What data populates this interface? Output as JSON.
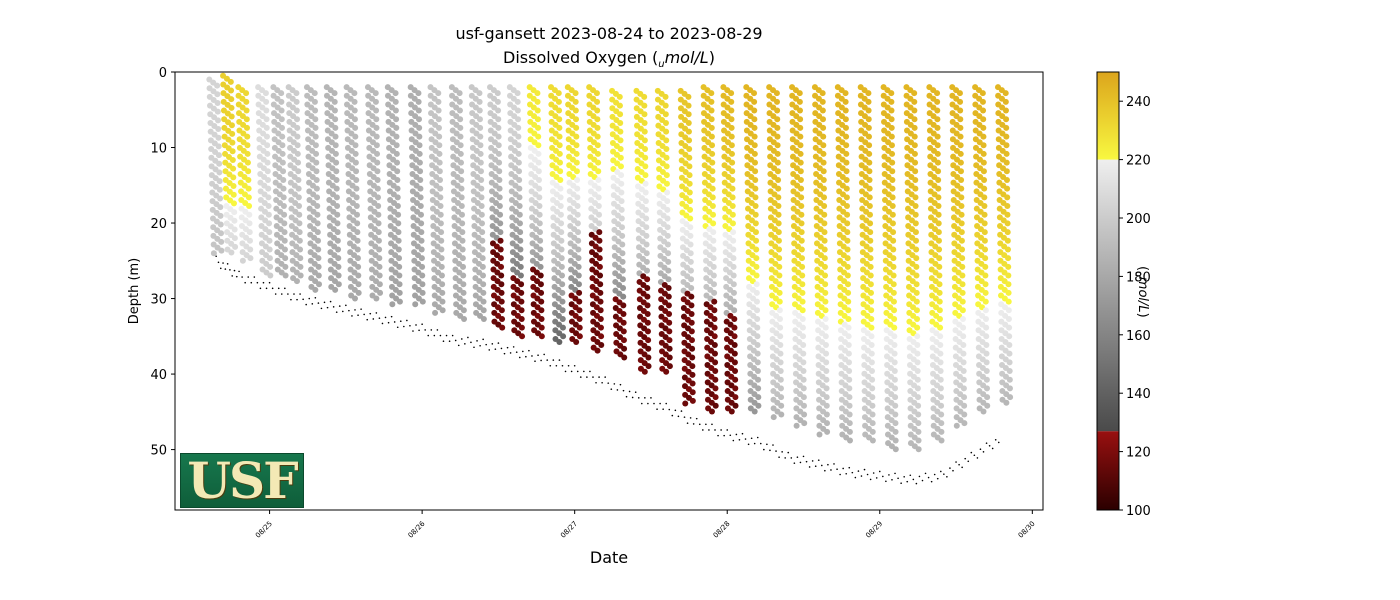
{
  "chart_data": {
    "type": "scatter",
    "title_line1": "usf-gansett 2023-08-24 to 2023-08-29",
    "title_line2_prefix": "Dissolved Oxygen (",
    "title_line2_sub": "u",
    "title_line2_unit": "mol/L",
    "title_line2_suffix": ")",
    "xlabel": "Date",
    "ylabel": "Depth (m)",
    "ylim": [
      58,
      0
    ],
    "y_ticks": [
      0,
      10,
      20,
      30,
      40,
      50
    ],
    "x_ticks": [
      "08/25",
      "08/26",
      "08/27",
      "08/28",
      "08/29",
      "08/30"
    ],
    "x_range_days": [
      24.38,
      30.07
    ],
    "colorbar": {
      "label_prefix": "(",
      "label_sub": "u",
      "label_unit": "mol/L",
      "label_suffix": ")",
      "range": [
        100,
        250
      ],
      "ticks": [
        100,
        120,
        140,
        160,
        180,
        200,
        220,
        240
      ],
      "segments": [
        {
          "from": 100,
          "to": 127,
          "colors": [
            "#2b0000",
            "#991010"
          ]
        },
        {
          "from": 127,
          "to": 220,
          "colors": [
            "#4a4a4a",
            "#efefef"
          ]
        },
        {
          "from": 220,
          "to": 250,
          "colors": [
            "#f8f840",
            "#dca51c"
          ]
        }
      ]
    },
    "profiles": [
      {
        "day": 24.63,
        "top": 1,
        "bottom": 24,
        "do_surface": 205,
        "do_bottom": 195
      },
      {
        "day": 24.72,
        "top": 0.5,
        "bottom": 24,
        "do_surface": 235,
        "do_bottom": 205
      },
      {
        "day": 24.82,
        "top": 2,
        "bottom": 25,
        "do_surface": 232,
        "do_bottom": 205
      },
      {
        "day": 24.95,
        "top": 2,
        "bottom": 27,
        "do_surface": 210,
        "do_bottom": 200
      },
      {
        "day": 25.05,
        "top": 2,
        "bottom": 27,
        "do_surface": 195,
        "do_bottom": 185
      },
      {
        "day": 25.15,
        "top": 2,
        "bottom": 28,
        "do_surface": 200,
        "do_bottom": 185
      },
      {
        "day": 25.27,
        "top": 2,
        "bottom": 29,
        "do_surface": 192,
        "do_bottom": 180
      },
      {
        "day": 25.4,
        "top": 2,
        "bottom": 29,
        "do_surface": 188,
        "do_bottom": 178
      },
      {
        "day": 25.53,
        "top": 2,
        "bottom": 30,
        "do_surface": 190,
        "do_bottom": 180
      },
      {
        "day": 25.67,
        "top": 2,
        "bottom": 30,
        "do_surface": 190,
        "do_bottom": 182
      },
      {
        "day": 25.8,
        "top": 2,
        "bottom": 31,
        "do_surface": 186,
        "do_bottom": 176
      },
      {
        "day": 25.95,
        "top": 2,
        "bottom": 31,
        "do_surface": 184,
        "do_bottom": 176
      },
      {
        "day": 26.08,
        "top": 2,
        "bottom": 32,
        "do_surface": 196,
        "do_bottom": 180
      },
      {
        "day": 26.22,
        "top": 2,
        "bottom": 33,
        "do_surface": 192,
        "do_bottom": 180
      },
      {
        "day": 26.35,
        "top": 2,
        "bottom": 33,
        "do_surface": 198,
        "do_bottom": 178
      },
      {
        "day": 26.47,
        "top": 2,
        "bottom": 34,
        "do_surface": 200,
        "do_bottom": 112,
        "hypoxic_from": 22
      },
      {
        "day": 26.6,
        "top": 2,
        "bottom": 35,
        "do_surface": 205,
        "do_bottom": 112,
        "hypoxic_from": 27
      },
      {
        "day": 26.73,
        "top": 2,
        "bottom": 35,
        "do_surface": 225,
        "do_bottom": 112,
        "hypoxic_from": 26
      },
      {
        "day": 26.87,
        "top": 2,
        "bottom": 36,
        "do_surface": 230,
        "do_bottom": 140
      },
      {
        "day": 26.98,
        "top": 2,
        "bottom": 36,
        "do_surface": 232,
        "do_bottom": 112,
        "hypoxic_from": 29
      },
      {
        "day": 27.12,
        "top": 2,
        "bottom": 37,
        "do_surface": 232,
        "do_bottom": 112,
        "hypoxic_from": 21
      },
      {
        "day": 27.27,
        "top": 2.5,
        "bottom": 38,
        "do_surface": 228,
        "do_bottom": 112,
        "hypoxic_from": 30
      },
      {
        "day": 27.43,
        "top": 2.5,
        "bottom": 40,
        "do_surface": 230,
        "do_bottom": 112,
        "hypoxic_from": 27
      },
      {
        "day": 27.57,
        "top": 2.5,
        "bottom": 40,
        "do_surface": 232,
        "do_bottom": 112,
        "hypoxic_from": 28
      },
      {
        "day": 27.72,
        "top": 2.5,
        "bottom": 44,
        "do_surface": 238,
        "do_bottom": 112,
        "hypoxic_from": 29
      },
      {
        "day": 27.87,
        "top": 2,
        "bottom": 45,
        "do_surface": 240,
        "do_bottom": 112,
        "hypoxic_from": 30
      },
      {
        "day": 28.0,
        "top": 2,
        "bottom": 45,
        "do_surface": 242,
        "do_bottom": 112,
        "hypoxic_from": 32
      },
      {
        "day": 28.15,
        "top": 2,
        "bottom": 45,
        "do_surface": 244,
        "do_bottom": 170
      },
      {
        "day": 28.3,
        "top": 2,
        "bottom": 46,
        "do_surface": 244,
        "do_bottom": 185
      },
      {
        "day": 28.45,
        "top": 2,
        "bottom": 47,
        "do_surface": 244,
        "do_bottom": 185
      },
      {
        "day": 28.6,
        "top": 2,
        "bottom": 48,
        "do_surface": 244,
        "do_bottom": 185
      },
      {
        "day": 28.75,
        "top": 2,
        "bottom": 49,
        "do_surface": 244,
        "do_bottom": 185
      },
      {
        "day": 28.9,
        "top": 2,
        "bottom": 49,
        "do_surface": 244,
        "do_bottom": 188
      },
      {
        "day": 29.05,
        "top": 2,
        "bottom": 50,
        "do_surface": 244,
        "do_bottom": 185
      },
      {
        "day": 29.2,
        "top": 2,
        "bottom": 50,
        "do_surface": 244,
        "do_bottom": 188
      },
      {
        "day": 29.35,
        "top": 2,
        "bottom": 49,
        "do_surface": 244,
        "do_bottom": 188
      },
      {
        "day": 29.5,
        "top": 2,
        "bottom": 47,
        "do_surface": 244,
        "do_bottom": 188
      },
      {
        "day": 29.65,
        "top": 2,
        "bottom": 45,
        "do_surface": 244,
        "do_bottom": 188
      },
      {
        "day": 29.8,
        "top": 2,
        "bottom": 44,
        "do_surface": 244,
        "do_bottom": 188
      }
    ],
    "bottom_marks": [
      {
        "day": 24.65,
        "depth": 25
      },
      {
        "day": 24.8,
        "depth": 27
      },
      {
        "day": 25.0,
        "depth": 28.5
      },
      {
        "day": 25.2,
        "depth": 30
      },
      {
        "day": 25.4,
        "depth": 31
      },
      {
        "day": 25.6,
        "depth": 32
      },
      {
        "day": 25.8,
        "depth": 33
      },
      {
        "day": 26.0,
        "depth": 34
      },
      {
        "day": 26.2,
        "depth": 35.5
      },
      {
        "day": 26.4,
        "depth": 36
      },
      {
        "day": 26.6,
        "depth": 37
      },
      {
        "day": 26.8,
        "depth": 38
      },
      {
        "day": 27.0,
        "depth": 39.5
      },
      {
        "day": 27.2,
        "depth": 41
      },
      {
        "day": 27.4,
        "depth": 43
      },
      {
        "day": 27.6,
        "depth": 44.5
      },
      {
        "day": 27.8,
        "depth": 46.5
      },
      {
        "day": 28.0,
        "depth": 48
      },
      {
        "day": 28.2,
        "depth": 49
      },
      {
        "day": 28.4,
        "depth": 51
      },
      {
        "day": 28.6,
        "depth": 52
      },
      {
        "day": 28.8,
        "depth": 53
      },
      {
        "day": 29.0,
        "depth": 53.5
      },
      {
        "day": 29.2,
        "depth": 54
      },
      {
        "day": 29.4,
        "depth": 53.5
      },
      {
        "day": 29.6,
        "depth": 51
      },
      {
        "day": 29.8,
        "depth": 48.5
      }
    ],
    "logo_text": "USF"
  }
}
